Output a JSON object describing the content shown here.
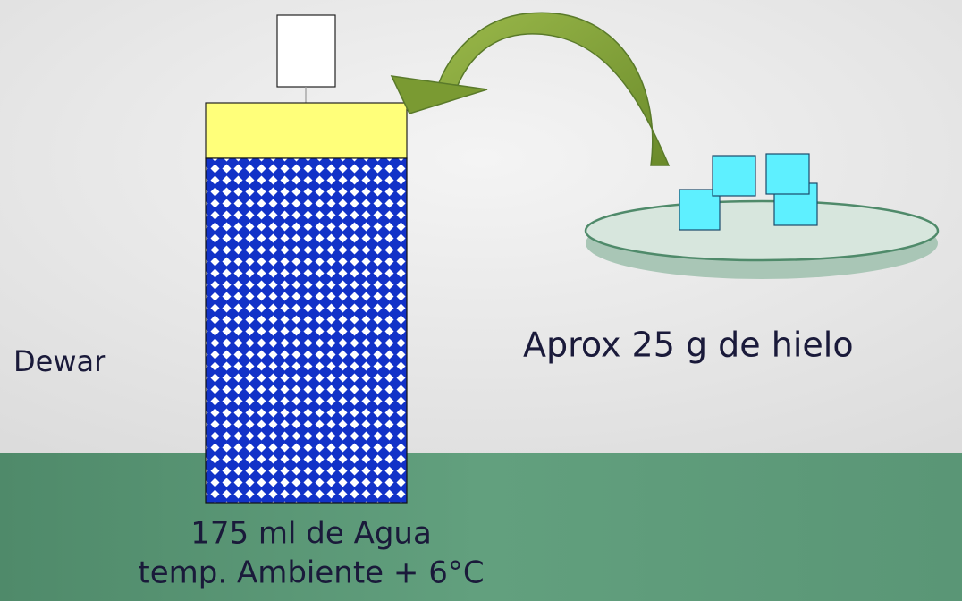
{
  "labels": {
    "dewar": "Dewar",
    "ice": "Aprox 25 g de hielo",
    "water": [
      "175 ml de Agua",
      "temp. Ambiente + 6°C"
    ]
  }
}
